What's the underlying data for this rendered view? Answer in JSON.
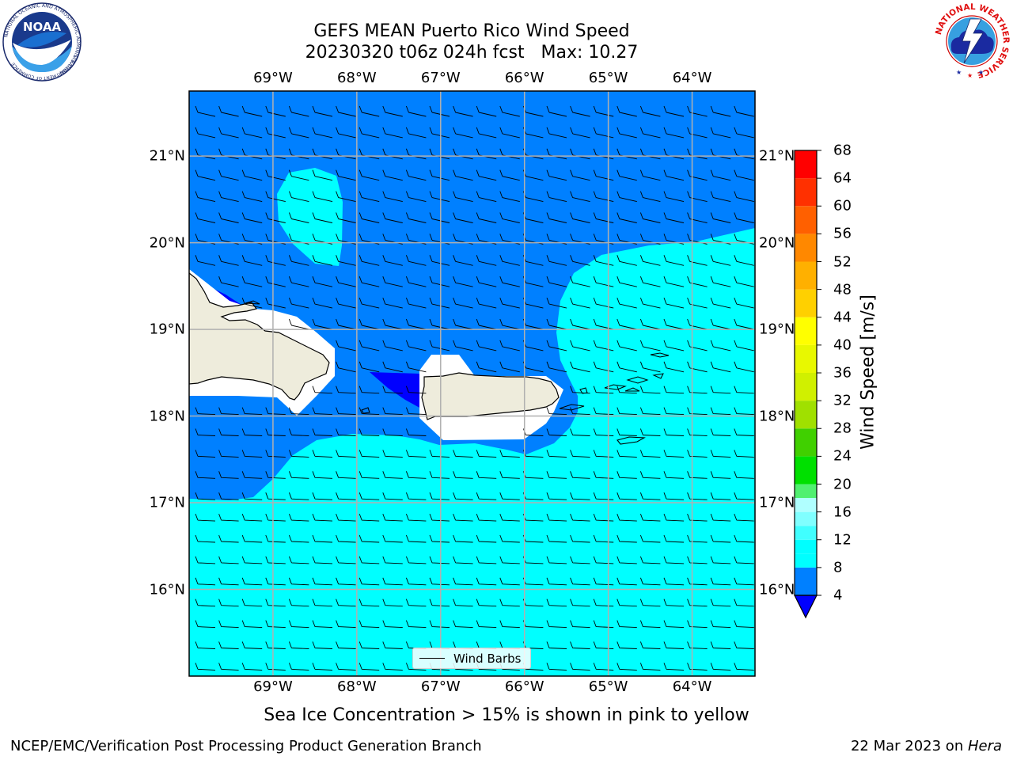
{
  "title": {
    "line1": "GEFS MEAN Puerto Rico Wind Speed",
    "line2": "20230320 t06z 024h fcst   Max: 10.27"
  },
  "logos": {
    "left": {
      "name": "noaa-logo",
      "text": "NOAA",
      "ring_text": "NATIONAL OCEANIC AND ATMOSPHERIC ADMINISTRATION",
      "ring_text_bottom": "U.S. DEPARTMENT OF COMMERCE"
    },
    "right": {
      "name": "nws-logo",
      "ring_text": "NATIONAL WEATHER SERVICE"
    }
  },
  "map": {
    "lon_labels": [
      "69°W",
      "68°W",
      "67°W",
      "66°W",
      "65°W",
      "64°W"
    ],
    "lat_labels": [
      "21°N",
      "20°N",
      "19°N",
      "18°N",
      "17°N",
      "16°N"
    ],
    "lon_values": [
      -69,
      -68,
      -67,
      -66,
      -65,
      -64
    ],
    "lat_values": [
      21,
      20,
      19,
      18,
      17,
      16
    ],
    "extent": {
      "lon_min": -70.0,
      "lon_max": -63.25,
      "lat_min": 15.0,
      "lat_max": 21.75
    },
    "colors": {
      "ocean_light": "#00ffff",
      "ocean_mid": "#0080ff",
      "ocean_dark": "#0000ff",
      "land": "#eeecdc",
      "grid": "#b0b0b0"
    }
  },
  "legend": {
    "label": "Wind Barbs"
  },
  "colorbar": {
    "label": "Wind Speed [m/s]",
    "ticks": [
      "68",
      "64",
      "60",
      "56",
      "52",
      "48",
      "44",
      "40",
      "36",
      "32",
      "28",
      "24",
      "20",
      "16",
      "12",
      "8",
      "4"
    ],
    "tick_values": [
      68,
      64,
      60,
      56,
      52,
      48,
      44,
      40,
      36,
      32,
      28,
      24,
      20,
      16,
      12,
      8,
      4
    ],
    "levels": [
      4,
      8,
      10,
      12,
      14,
      16,
      18,
      20,
      24,
      28,
      32,
      36,
      40,
      44,
      48,
      52,
      56,
      60,
      64,
      68
    ],
    "colors": [
      "#0080ff",
      "#00ffff",
      "#00ffff",
      "#40ffff",
      "#80ffff",
      "#b0ffff",
      "#50f070",
      "#00e000",
      "#40d000",
      "#a0e000",
      "#d0f000",
      "#e8f800",
      "#ffff00",
      "#ffd000",
      "#ffb000",
      "#ff8800",
      "#ff6000",
      "#ff3000",
      "#ff0000"
    ],
    "under_color": "#0000ff"
  },
  "caption": "Sea Ice Concentration > 15% is shown in pink to yellow",
  "footer": {
    "left": "NCEP/EMC/Verification Post Processing Product Generation Branch",
    "right_prefix": "22 Mar 2023 on ",
    "right_host": "Hera"
  }
}
